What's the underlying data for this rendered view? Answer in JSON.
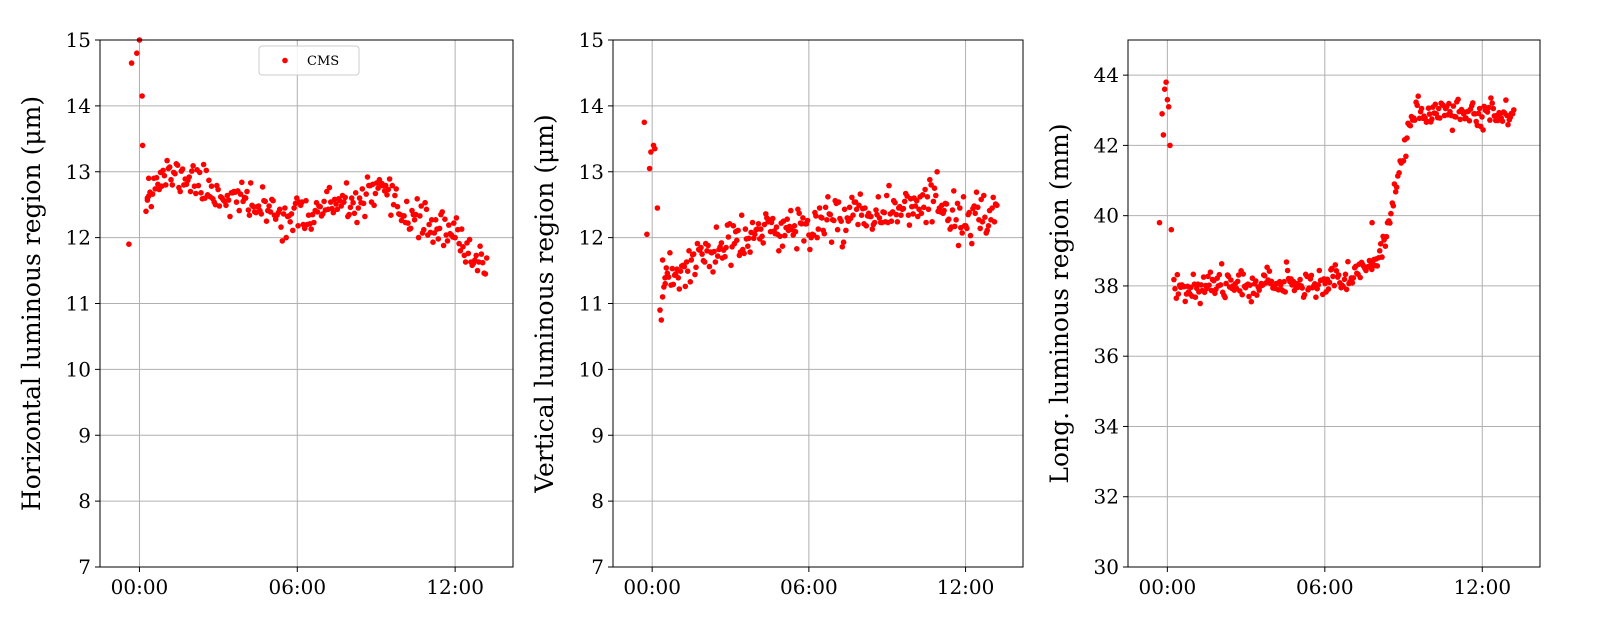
{
  "colors": {
    "marker": "#ff0000",
    "grid": "#b0b0b0",
    "axis": "#000000"
  },
  "chart_data": [
    {
      "type": "scatter",
      "title": "",
      "xlabel": "",
      "ylabel": "Horizontal luminous region (μm)",
      "ylim": [
        7,
        15
      ],
      "yticks": [
        "7",
        "8",
        "9",
        "10",
        "11",
        "12",
        "13",
        "14",
        "15"
      ],
      "xlim": [
        -1.5,
        14.2
      ],
      "xticks": [
        {
          "value": 0,
          "label": "00:00"
        },
        {
          "value": 6,
          "label": "06:00"
        },
        {
          "value": 12,
          "label": "12:00"
        }
      ],
      "grid": true,
      "legend": {
        "entries": [
          "CMS"
        ],
        "placement": "top-center"
      },
      "series": [
        {
          "name": "CMS",
          "color": "#ff0000",
          "x": [],
          "y": []
        }
      ]
    },
    {
      "type": "scatter",
      "title": "",
      "xlabel": "",
      "ylabel": "Vertical luminous region (μm)",
      "ylim": [
        7,
        15
      ],
      "yticks": [
        "7",
        "8",
        "9",
        "10",
        "11",
        "12",
        "13",
        "14",
        "15"
      ],
      "xlim": [
        -1.5,
        14.2
      ],
      "xticks": [
        {
          "value": 0,
          "label": "00:00"
        },
        {
          "value": 6,
          "label": "06:00"
        },
        {
          "value": 12,
          "label": "12:00"
        }
      ],
      "grid": true,
      "series": [
        {
          "color": "#ff0000",
          "x": [],
          "y": []
        }
      ]
    },
    {
      "type": "scatter",
      "title": "",
      "xlabel": "",
      "ylabel": "Long. luminous region (mm)",
      "ylim": [
        30,
        45
      ],
      "yticks": [
        "30",
        "32",
        "34",
        "36",
        "38",
        "40",
        "42",
        "44"
      ],
      "xlim": [
        -1.5,
        14.2
      ],
      "xticks": [
        {
          "value": 0,
          "label": "00:00"
        },
        {
          "value": 6,
          "label": "06:00"
        },
        {
          "value": 12,
          "label": "12:00"
        }
      ],
      "grid": true,
      "series": [
        {
          "color": "#ff0000",
          "x": [],
          "y": []
        }
      ]
    }
  ]
}
